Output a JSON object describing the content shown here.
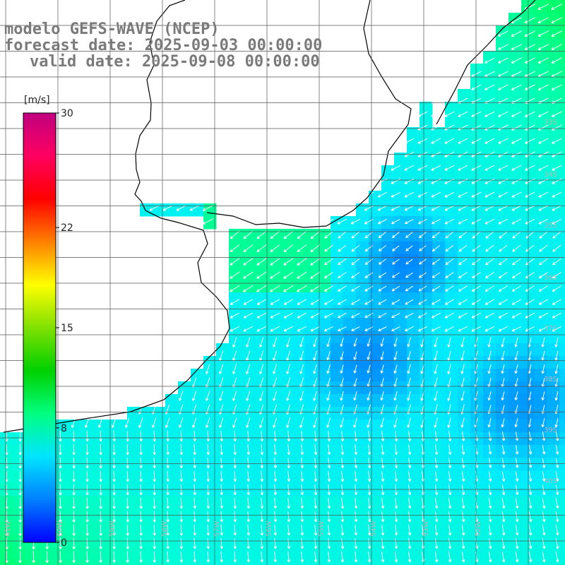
{
  "title": {
    "line1": "modelo GEFS-WAVE (NCEP)",
    "line2": "forecast date: 2025-09-03 00:00:00",
    "line3": "valid date: 2025-09-08 00:00:00"
  },
  "colorbar": {
    "unit": "[m/s]",
    "ticks": [
      "30",
      "22",
      "15",
      "8",
      "0"
    ],
    "tick_values": [
      30,
      22,
      15,
      8,
      0
    ],
    "range": [
      0,
      30
    ],
    "colors": [
      "#0000ff",
      "#0080ff",
      "#00e5ff",
      "#00ff80",
      "#00d000",
      "#80e000",
      "#ffff00",
      "#ff8000",
      "#ff0000",
      "#ff0060",
      "#c00080"
    ]
  },
  "lat_labels": [
    "33S",
    "34S",
    "35S",
    "36S",
    "37S",
    "38S",
    "39S",
    "40S"
  ],
  "lon_labels": [
    "61W",
    "60W",
    "59W",
    "58W",
    "57W",
    "56W",
    "55W",
    "54W",
    "53W",
    "52W"
  ],
  "colors": {
    "land": "#ffffff",
    "coast": "#000000",
    "grid": "#555555",
    "arrow": "#ffffff",
    "title": "#7a7a7a"
  }
}
